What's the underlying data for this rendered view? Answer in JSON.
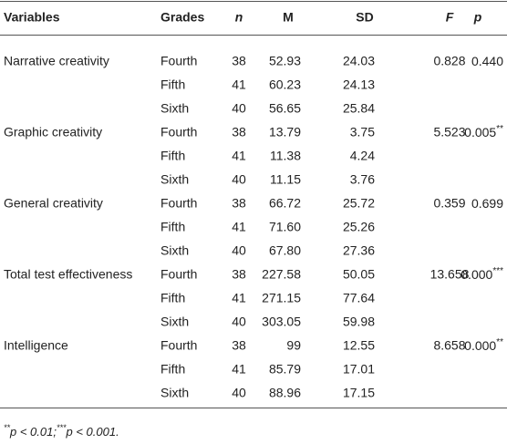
{
  "header": {
    "variables": "Variables",
    "grades": "Grades",
    "n": "n",
    "m": "M",
    "sd": "SD",
    "f": "F",
    "p": "p"
  },
  "groups": [
    {
      "variable": "Narrative creativity",
      "F": "0.828",
      "p": {
        "value": "0.440"
      },
      "rows": [
        [
          "Fourth",
          "38",
          "52.93",
          "24.03"
        ],
        [
          "Fifth",
          "41",
          "60.23",
          "24.13"
        ],
        [
          "Sixth",
          "40",
          "56.65",
          "25.84"
        ]
      ]
    },
    {
      "variable": "Graphic creativity",
      "F": "5.523",
      "p": {
        "value": "0.005",
        "sig": "**"
      },
      "rows": [
        [
          "Fourth",
          "38",
          "13.79",
          "3.75"
        ],
        [
          "Fifth",
          "41",
          "11.38",
          "4.24"
        ],
        [
          "Sixth",
          "40",
          "11.15",
          "3.76"
        ]
      ]
    },
    {
      "variable": "General creativity",
      "F": "0.359",
      "p": {
        "value": "0.699"
      },
      "rows": [
        [
          "Fourth",
          "38",
          "66.72",
          "25.72"
        ],
        [
          "Fifth",
          "41",
          "71.60",
          "25.26"
        ],
        [
          "Sixth",
          "40",
          "67.80",
          "27.36"
        ]
      ]
    },
    {
      "variable": "Total test effectiveness",
      "F": "13.658",
      "p": {
        "value": "0.000",
        "sig": "***"
      },
      "rows": [
        [
          "Fourth",
          "38",
          "227.58",
          "50.05"
        ],
        [
          "Fifth",
          "41",
          "271.15",
          "77.64"
        ],
        [
          "Sixth",
          "40",
          "303.05",
          "59.98"
        ]
      ]
    },
    {
      "variable": "Intelligence",
      "F": "8.658",
      "p": {
        "value": "0.000",
        "sig": "**"
      },
      "rows": [
        [
          "Fourth",
          "38",
          "99",
          "12.55"
        ],
        [
          "Fifth",
          "41",
          "85.79",
          "17.01"
        ],
        [
          "Sixth",
          "40",
          "88.96",
          "17.15"
        ]
      ]
    }
  ],
  "footnote": [
    {
      "mark": "**",
      "text": "p < 0.01;"
    },
    {
      "mark": "***",
      "text": "p < 0.001."
    }
  ]
}
